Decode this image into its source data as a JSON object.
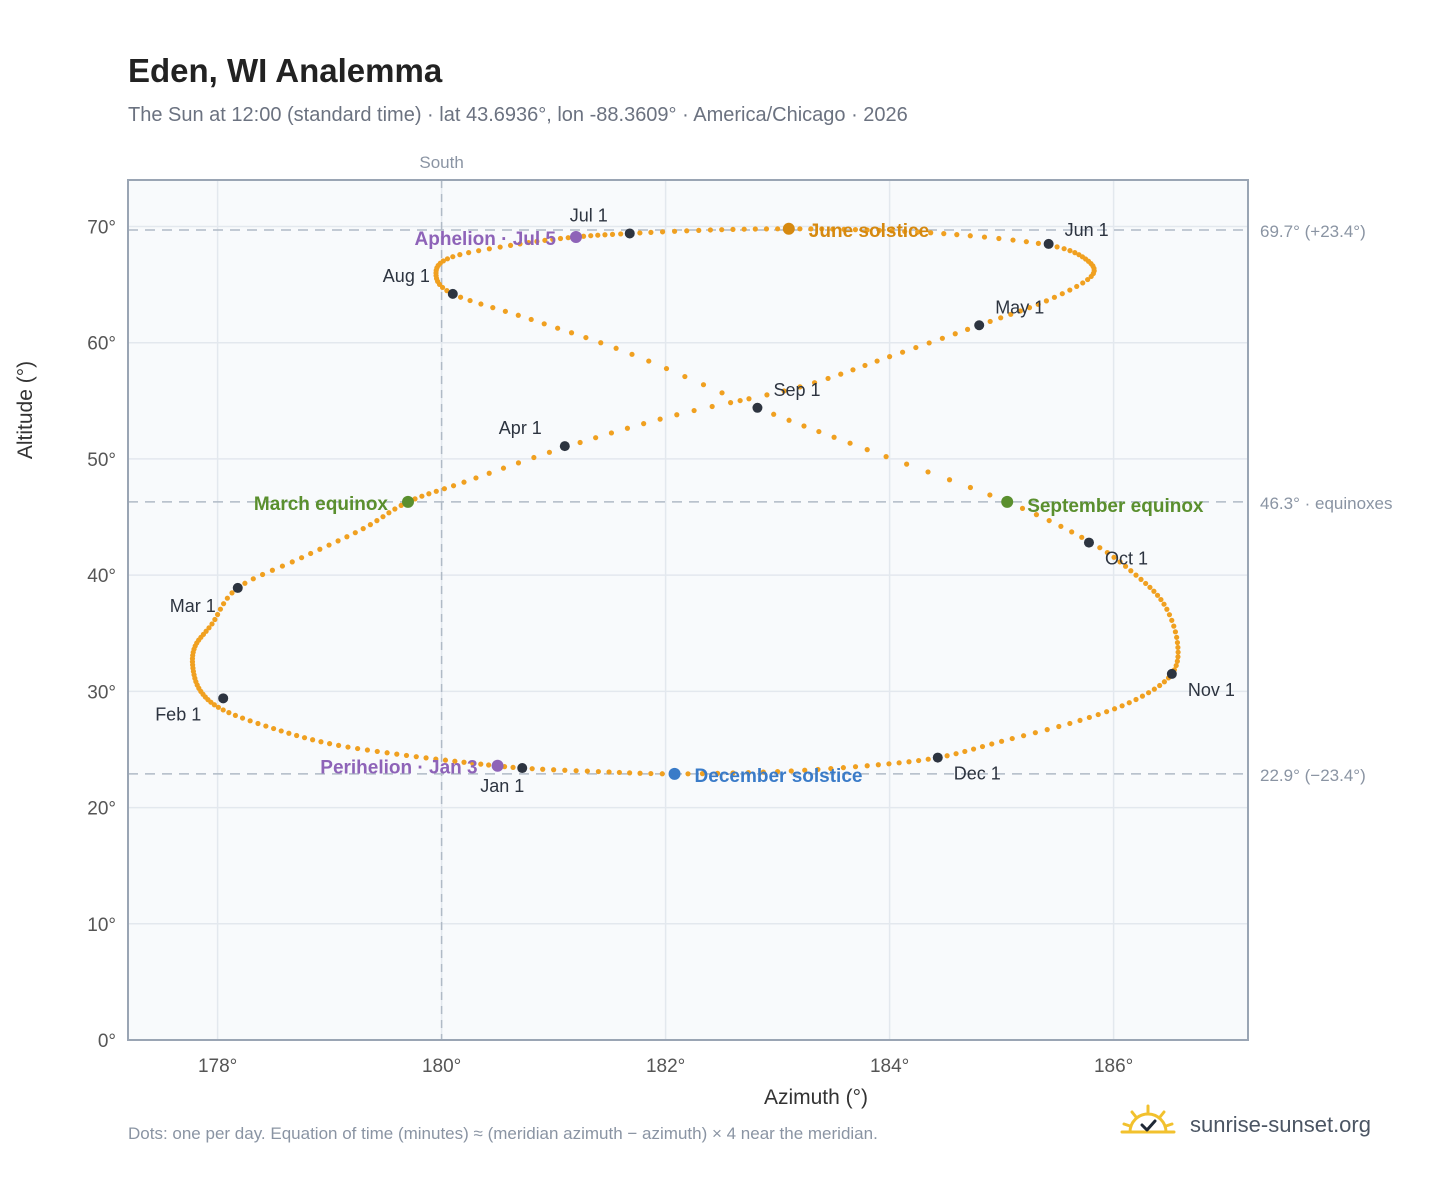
{
  "title": "Eden, WI Analemma",
  "subtitle": "The Sun at 12:00 (standard time) · lat 43.6936°, lon -88.3609° · America/Chicago · 2026",
  "footer_note": "Dots: one per day. Equation of time (minutes) ≈ (meridian azimuth − azimuth) × 4 near the meridian.",
  "brand": "sunrise-sunset.org",
  "chart_data": {
    "type": "scatter",
    "xlabel": "Azimuth (°)",
    "ylabel": "Altitude (°)",
    "xlim": [
      177.2,
      187.2
    ],
    "ylim": [
      0,
      74
    ],
    "xticks": [
      178,
      180,
      182,
      184,
      186
    ],
    "xtick_labels": [
      "178°",
      "180°",
      "182°",
      "184°",
      "186°"
    ],
    "yticks": [
      0,
      10,
      20,
      30,
      40,
      50,
      60,
      70
    ],
    "ytick_labels": [
      "0°",
      "10°",
      "20°",
      "30°",
      "40°",
      "50°",
      "60°",
      "70°"
    ],
    "grid": true,
    "meridian": {
      "x": 180,
      "label": "South"
    },
    "reference_lines": [
      {
        "y": 69.7,
        "label": "69.7° (+23.4°)"
      },
      {
        "y": 46.3,
        "label": "46.3° · equinoxes"
      },
      {
        "y": 22.9,
        "label": "22.9° (−23.4°)"
      }
    ],
    "path_series": {
      "name": "Daily noon position",
      "color": "#f0a020",
      "points": [
        [
          180.72,
          23.4
        ],
        [
          180.2,
          23.9
        ],
        [
          179.6,
          24.6
        ],
        [
          179.0,
          25.5
        ],
        [
          178.5,
          26.8
        ],
        [
          178.05,
          28.4
        ],
        [
          177.85,
          30.0
        ],
        [
          177.78,
          32.0
        ],
        [
          177.8,
          33.9
        ],
        [
          177.95,
          35.8
        ],
        [
          178.18,
          38.9
        ],
        [
          178.75,
          41.5
        ],
        [
          179.3,
          44.0
        ],
        [
          179.7,
          46.3
        ],
        [
          180.2,
          48.0
        ],
        [
          181.1,
          51.0
        ],
        [
          182.1,
          53.8
        ],
        [
          183.2,
          56.2
        ],
        [
          184.0,
          58.8
        ],
        [
          184.8,
          61.5
        ],
        [
          185.4,
          63.6
        ],
        [
          185.8,
          65.7
        ],
        [
          185.75,
          67.2
        ],
        [
          185.42,
          68.4
        ],
        [
          184.6,
          69.3
        ],
        [
          183.8,
          69.7
        ],
        [
          183.1,
          69.8
        ],
        [
          182.4,
          69.7
        ],
        [
          181.68,
          69.4
        ],
        [
          181.2,
          69.1
        ],
        [
          180.7,
          68.5
        ],
        [
          180.1,
          67.4
        ],
        [
          179.95,
          66.0
        ],
        [
          180.1,
          64.2
        ],
        [
          180.8,
          62.0
        ],
        [
          181.7,
          59.0
        ],
        [
          182.82,
          54.4
        ],
        [
          183.8,
          50.8
        ],
        [
          185.05,
          46.3
        ],
        [
          185.8,
          42.8
        ],
        [
          186.2,
          40.0
        ],
        [
          186.45,
          37.5
        ],
        [
          186.57,
          34.2
        ],
        [
          186.52,
          31.5
        ],
        [
          186.2,
          29.3
        ],
        [
          185.7,
          27.5
        ],
        [
          185.0,
          25.7
        ],
        [
          184.43,
          24.3
        ],
        [
          183.8,
          23.6
        ],
        [
          183.0,
          23.1
        ],
        [
          182.08,
          22.9
        ],
        [
          181.4,
          23.1
        ],
        [
          180.72,
          23.4
        ]
      ]
    },
    "month_markers": [
      {
        "label": "Jan 1",
        "x": 180.72,
        "y": 23.4
      },
      {
        "label": "Feb 1",
        "x": 178.05,
        "y": 29.4
      },
      {
        "label": "Mar 1",
        "x": 178.18,
        "y": 38.9
      },
      {
        "label": "Apr 1",
        "x": 181.1,
        "y": 51.1
      },
      {
        "label": "May 1",
        "x": 184.8,
        "y": 61.5
      },
      {
        "label": "Jun 1",
        "x": 185.42,
        "y": 68.5
      },
      {
        "label": "Jul 1",
        "x": 181.68,
        "y": 69.4
      },
      {
        "label": "Aug 1",
        "x": 180.1,
        "y": 64.2
      },
      {
        "label": "Sep 1",
        "x": 182.82,
        "y": 54.4
      },
      {
        "label": "Oct 1",
        "x": 185.78,
        "y": 42.8
      },
      {
        "label": "Nov 1",
        "x": 186.52,
        "y": 31.5
      },
      {
        "label": "Dec 1",
        "x": 184.43,
        "y": 24.3
      }
    ],
    "events": [
      {
        "label": "Aphelion · Jul 5",
        "x": 181.2,
        "y": 69.1,
        "color": "#8e63b8"
      },
      {
        "label": "June solstice",
        "x": 183.1,
        "y": 69.8,
        "color": "#d68910"
      },
      {
        "label": "March equinox",
        "x": 179.7,
        "y": 46.3,
        "color": "#5a8f2e"
      },
      {
        "label": "September equinox",
        "x": 185.05,
        "y": 46.3,
        "color": "#5a8f2e"
      },
      {
        "label": "Perihelion · Jan 3",
        "x": 180.5,
        "y": 23.6,
        "color": "#8e63b8"
      },
      {
        "label": "December solstice",
        "x": 182.08,
        "y": 22.9,
        "color": "#3a7bc8"
      }
    ]
  }
}
